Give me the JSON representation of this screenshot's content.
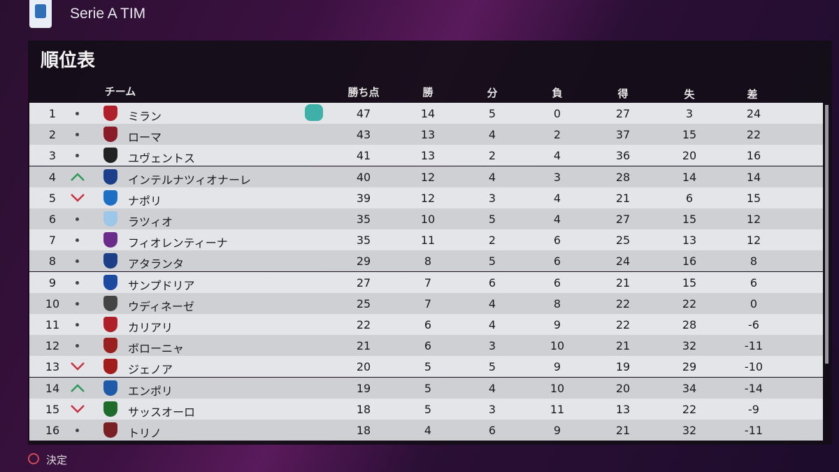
{
  "header": {
    "league": "Serie A TIM",
    "title": "順位表"
  },
  "table": {
    "columns": [
      "チーム",
      "勝ち点",
      "勝",
      "分",
      "負",
      "得",
      "失",
      "差"
    ],
    "rows": [
      {
        "rank": 1,
        "trend": "same",
        "team": "ミラン",
        "stats": [
          47,
          14,
          5,
          0,
          27,
          3,
          24
        ]
      },
      {
        "rank": 2,
        "trend": "same",
        "team": "ローマ",
        "stats": [
          43,
          13,
          4,
          2,
          37,
          15,
          22
        ]
      },
      {
        "rank": 3,
        "trend": "same",
        "team": "ユヴェントス",
        "stats": [
          41,
          13,
          2,
          4,
          36,
          20,
          16
        ]
      },
      {
        "rank": 4,
        "trend": "up",
        "team": "インテルナツィオナーレ",
        "stats": [
          40,
          12,
          4,
          3,
          28,
          14,
          14
        ]
      },
      {
        "rank": 5,
        "trend": "down",
        "team": "ナポリ",
        "stats": [
          39,
          12,
          3,
          4,
          21,
          6,
          15
        ]
      },
      {
        "rank": 6,
        "trend": "same",
        "team": "ラツィオ",
        "stats": [
          35,
          10,
          5,
          4,
          27,
          15,
          12
        ]
      },
      {
        "rank": 7,
        "trend": "same",
        "team": "フィオレンティーナ",
        "stats": [
          35,
          11,
          2,
          6,
          25,
          13,
          12
        ]
      },
      {
        "rank": 8,
        "trend": "same",
        "team": "アタランタ",
        "stats": [
          29,
          8,
          5,
          6,
          24,
          16,
          8
        ]
      },
      {
        "rank": 9,
        "trend": "same",
        "team": "サンプドリア",
        "stats": [
          27,
          7,
          6,
          6,
          21,
          15,
          6
        ]
      },
      {
        "rank": 10,
        "trend": "same",
        "team": "ウディネーゼ",
        "stats": [
          25,
          7,
          4,
          8,
          22,
          22,
          0
        ]
      },
      {
        "rank": 11,
        "trend": "same",
        "team": "カリアリ",
        "stats": [
          22,
          6,
          4,
          9,
          22,
          28,
          -6
        ]
      },
      {
        "rank": 12,
        "trend": "same",
        "team": "ボローニャ",
        "stats": [
          21,
          6,
          3,
          10,
          21,
          32,
          -11
        ]
      },
      {
        "rank": 13,
        "trend": "down",
        "team": "ジェノア",
        "stats": [
          20,
          5,
          5,
          9,
          19,
          29,
          -10
        ]
      },
      {
        "rank": 14,
        "trend": "up",
        "team": "エンポリ",
        "stats": [
          19,
          5,
          4,
          10,
          20,
          34,
          -14
        ]
      },
      {
        "rank": 15,
        "trend": "down",
        "team": "サッスオーロ",
        "stats": [
          18,
          5,
          3,
          11,
          13,
          22,
          -9
        ]
      },
      {
        "rank": 16,
        "trend": "same",
        "team": "トリノ",
        "stats": [
          18,
          4,
          6,
          9,
          21,
          32,
          -11
        ]
      }
    ]
  },
  "footer": {
    "confirm": "決定"
  }
}
